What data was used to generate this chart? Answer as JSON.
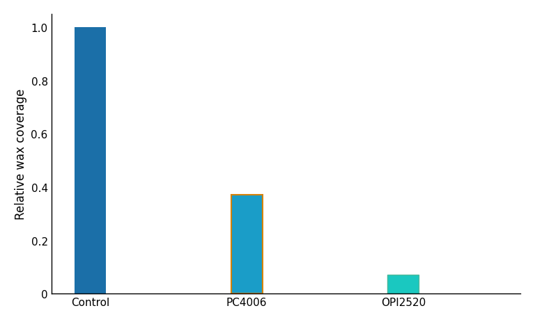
{
  "categories": [
    "Control",
    "PC4006",
    "OPI2520"
  ],
  "values": [
    1.0,
    0.37,
    0.07
  ],
  "bar_colors": [
    "#1b6fa8",
    "#1a9dc8",
    "#1ac8c0"
  ],
  "bar_edgecolors": [
    "none",
    "#d4820a",
    "#4ab89a"
  ],
  "bar_linewidths": [
    0,
    1.5,
    1.0
  ],
  "ylabel": "Relative wax coverage",
  "ylim": [
    0,
    1.05
  ],
  "yticks": [
    0,
    0.2,
    0.4,
    0.6,
    0.8,
    1.0
  ],
  "bar_width": 0.4,
  "background_color": "#ffffff",
  "ylabel_fontsize": 12,
  "tick_fontsize": 11,
  "label_fontsize": 11,
  "spine_color": "#000000",
  "x_positions": [
    1,
    3,
    5
  ]
}
